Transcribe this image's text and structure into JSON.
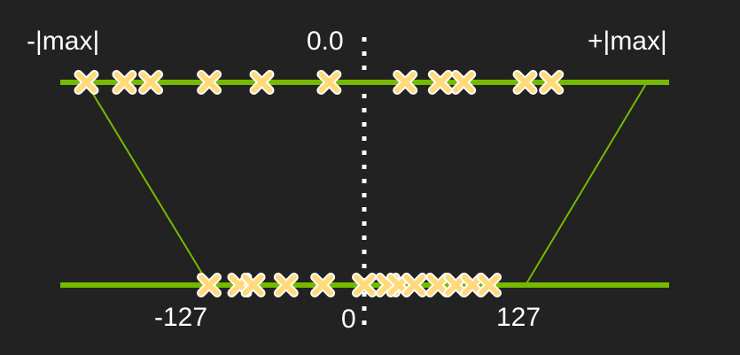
{
  "labels": {
    "neg_max": "-|max|",
    "zero_float": "0.0",
    "pos_max": "+|max|",
    "neg_127": "-127",
    "zero_int": "0",
    "pos_127": "127"
  },
  "colors": {
    "background": "#222222",
    "axis_line": "#76b900",
    "marker_fill": "#ffd97a",
    "marker_outline": "#ffffff",
    "divider": "#ffffff",
    "text": "#ffffff"
  },
  "top_axis": {
    "range": [
      -1,
      1
    ],
    "points": [
      -0.95,
      -0.82,
      -0.73,
      -0.53,
      -0.35,
      -0.12,
      0.14,
      0.26,
      0.34,
      0.55,
      0.64
    ]
  },
  "bottom_axis": {
    "range": [
      -127,
      127
    ],
    "points": [
      -127,
      -102,
      -91,
      -64,
      -34,
      0,
      24,
      35,
      51,
      75,
      93,
      110,
      127
    ]
  }
}
